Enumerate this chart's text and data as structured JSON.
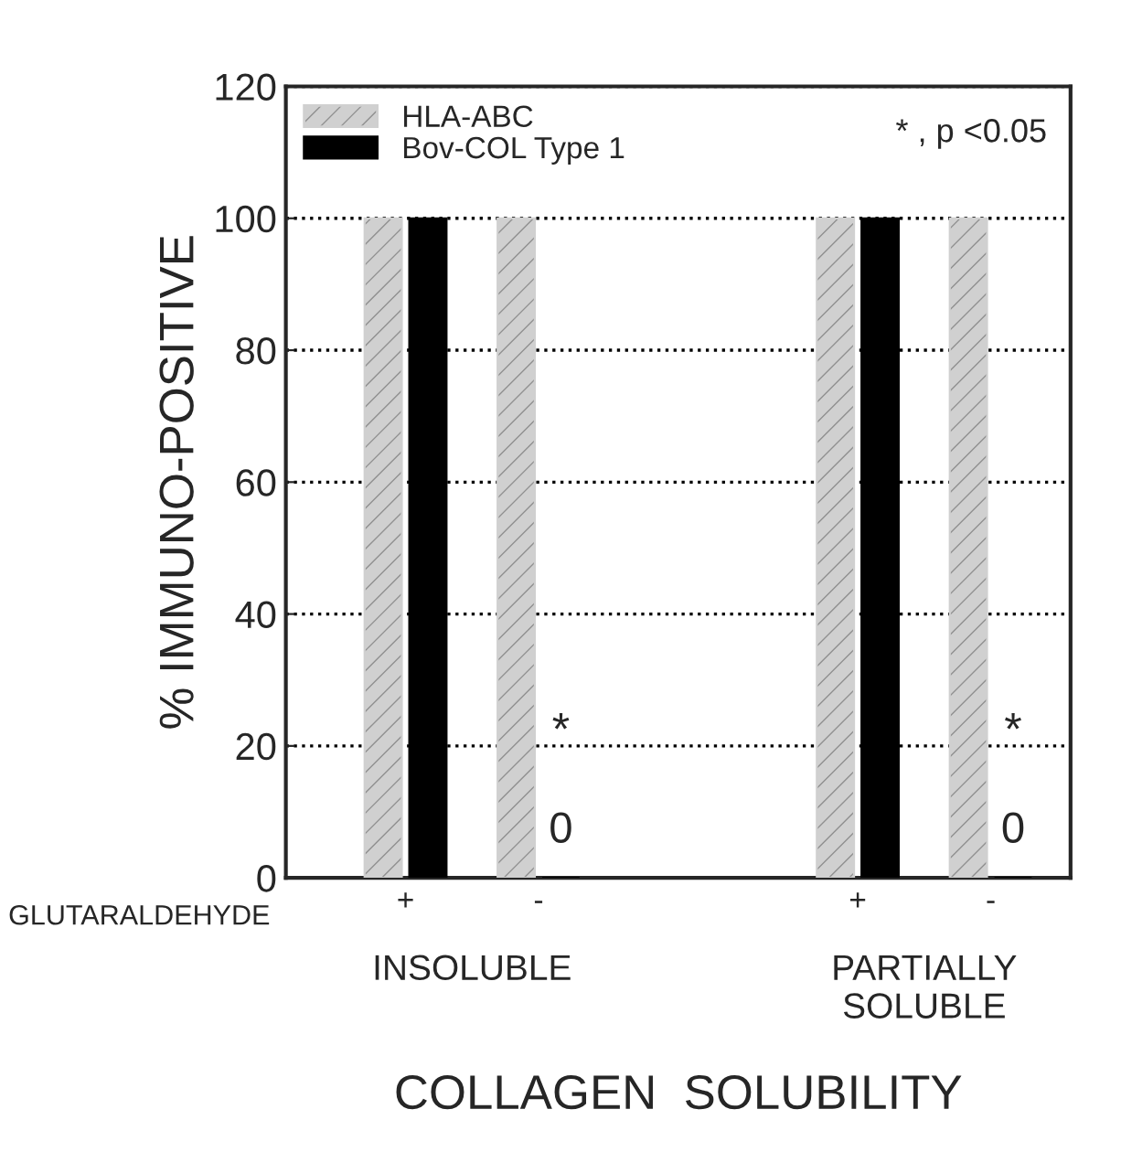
{
  "chart_data": {
    "type": "bar",
    "ylabel": "% IMMUNO-POSITIVE",
    "xlabel": "COLLAGEN  SOLUBILITY",
    "categories": [
      "+",
      "-",
      "+",
      "-"
    ],
    "series": [
      {
        "name": "HLA-ABC",
        "color": "#d0d0d0",
        "values": [
          100,
          100,
          100,
          100
        ]
      },
      {
        "name": "Bov-COL Type 1",
        "color": "#000000",
        "values": [
          100,
          0,
          100,
          0
        ],
        "value_labels": [
          null,
          "0",
          null,
          "0"
        ]
      }
    ],
    "ylim": [
      0,
      120
    ],
    "yticks": [
      0,
      20,
      40,
      60,
      80,
      100,
      120
    ],
    "grid": "y",
    "line_style": "dotted",
    "legend": "top left",
    "annotations": [
      "* , p <0.05",
      "GLUTARALDEHYDE",
      "INSOLUBLE",
      "PARTIALLY\nSOLUBLE",
      "*",
      "*"
    ]
  }
}
